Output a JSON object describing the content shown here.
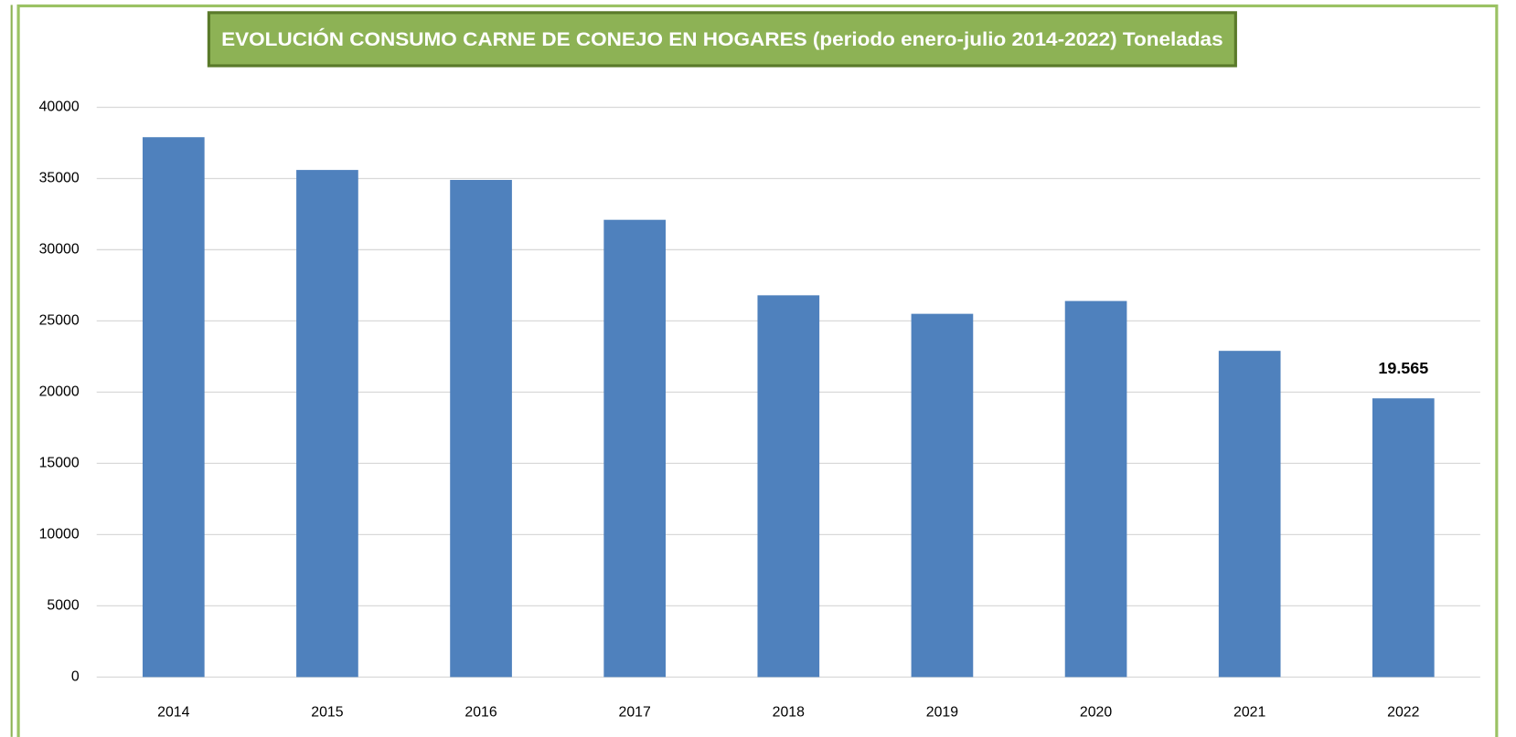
{
  "chart_data": {
    "type": "bar",
    "title": "EVOLUCIÓN CONSUMO CARNE DE CONEJO EN HOGARES (periodo enero-julio 2014-2022) Toneladas",
    "categories": [
      "2014",
      "2015",
      "2016",
      "2017",
      "2018",
      "2019",
      "2020",
      "2021",
      "2022"
    ],
    "values": [
      37900,
      35600,
      34900,
      32100,
      26800,
      25500,
      26400,
      22900,
      19565
    ],
    "value_labels": [
      null,
      null,
      null,
      null,
      null,
      null,
      null,
      null,
      "19.565"
    ],
    "color": "#4f81bd",
    "ylim": [
      0,
      40000
    ],
    "yticks": [
      0,
      5000,
      10000,
      15000,
      20000,
      25000,
      30000,
      35000,
      40000
    ],
    "grid": true
  }
}
